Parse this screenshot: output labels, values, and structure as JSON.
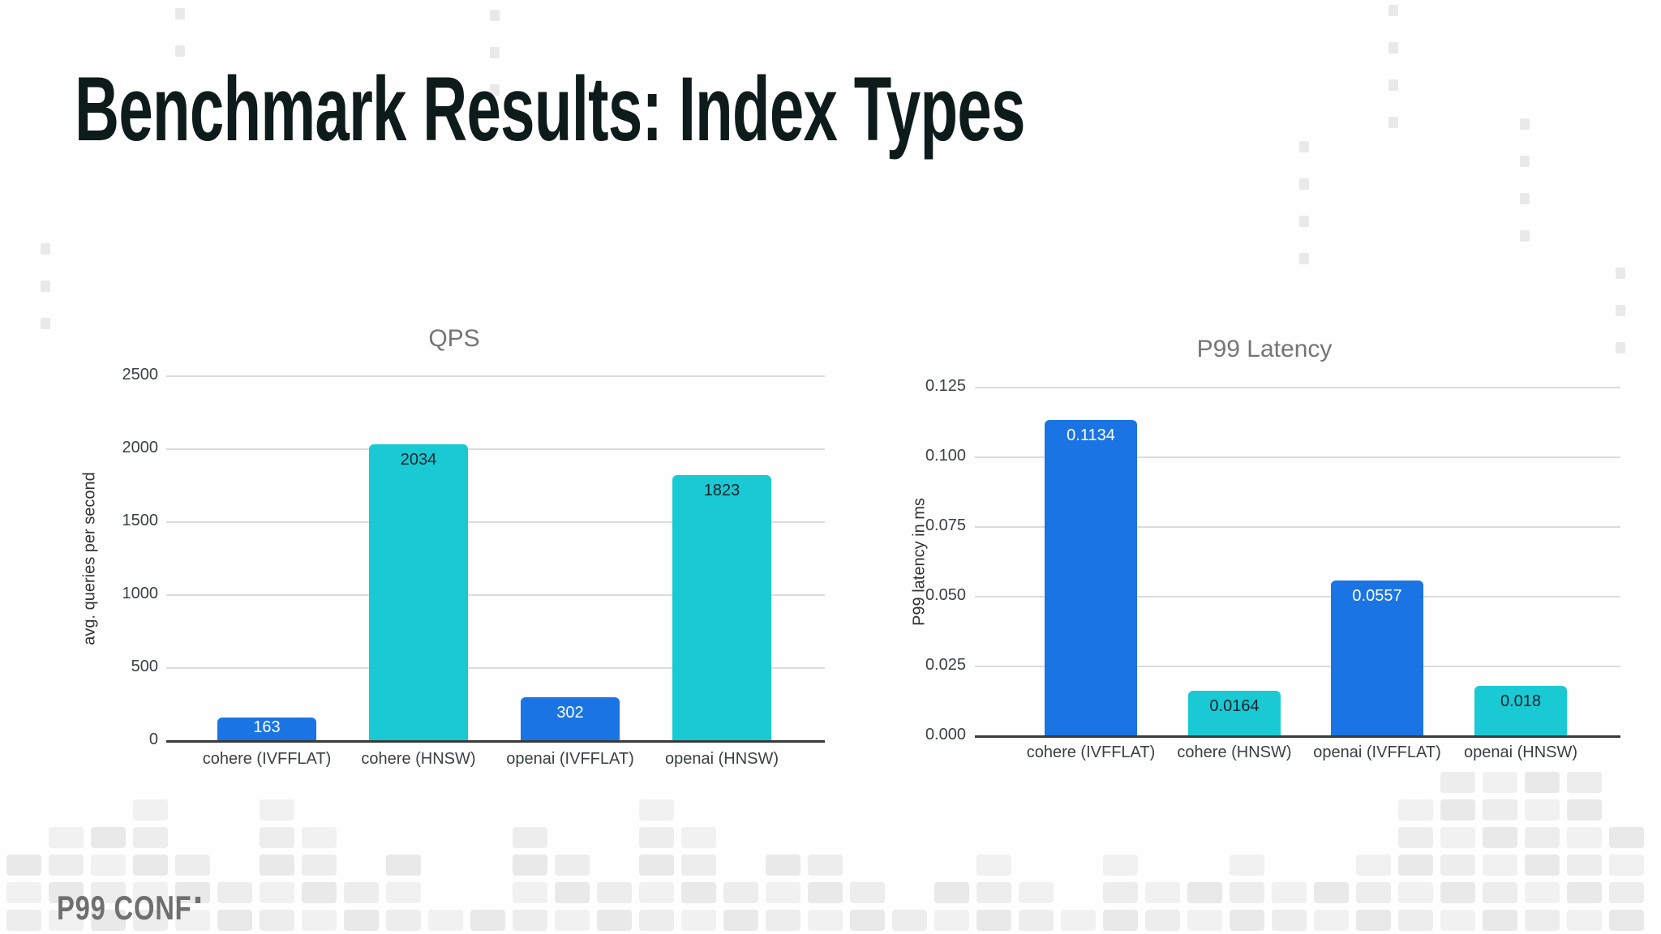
{
  "slide": {
    "title": "Benchmark Results: Index Types",
    "footer_logo": "P99 CONF"
  },
  "colors": {
    "bar_blue": "#1b74e4",
    "bar_cyan": "#19c9d3",
    "title_text": "#0d1b1a",
    "chart_title_gray": "#757575",
    "gridline": "#dcdcdc",
    "axis_line": "#3a3a3a",
    "logo_gray": "#6f6f6f"
  },
  "chart_data": [
    {
      "type": "bar",
      "title": "QPS",
      "xlabel": "",
      "ylabel": "avg. queries per second",
      "categories": [
        "cohere (IVFFLAT)",
        "cohere (HNSW)",
        "openai (IVFFLAT)",
        "openai (HNSW)"
      ],
      "values": [
        163,
        2034,
        302,
        1823
      ],
      "value_labels": [
        "163",
        "2034",
        "302",
        "1823"
      ],
      "bar_colors": [
        "#1b74e4",
        "#19c9d3",
        "#1b74e4",
        "#19c9d3"
      ],
      "label_colors": [
        "#ffffff",
        "#13232c",
        "#ffffff",
        "#13232c"
      ],
      "yticks": [
        0,
        500,
        1000,
        1500,
        2000,
        2500
      ],
      "ytick_labels": [
        "0",
        "500",
        "1000",
        "1500",
        "2000",
        "2500"
      ],
      "ylim": [
        0,
        2500
      ],
      "grid": true,
      "legend": "none"
    },
    {
      "type": "bar",
      "title": "P99 Latency",
      "xlabel": "",
      "ylabel": "P99 latency in ms",
      "categories": [
        "cohere (IVFFLAT)",
        "cohere (HNSW)",
        "openai (IVFFLAT)",
        "openai (HNSW)"
      ],
      "values": [
        0.1134,
        0.0164,
        0.0557,
        0.018
      ],
      "value_labels": [
        "0.1134",
        "0.0164",
        "0.0557",
        "0.018"
      ],
      "bar_colors": [
        "#1b74e4",
        "#19c9d3",
        "#1b74e4",
        "#19c9d3"
      ],
      "label_colors": [
        "#ffffff",
        "#13232c",
        "#ffffff",
        "#13232c"
      ],
      "yticks": [
        0,
        0.025,
        0.05,
        0.075,
        0.1,
        0.125
      ],
      "ytick_labels": [
        "0.000",
        "0.025",
        "0.050",
        "0.075",
        "0.100",
        "0.125"
      ],
      "ylim": [
        0,
        0.125
      ],
      "grid": true,
      "legend": "none"
    }
  ]
}
